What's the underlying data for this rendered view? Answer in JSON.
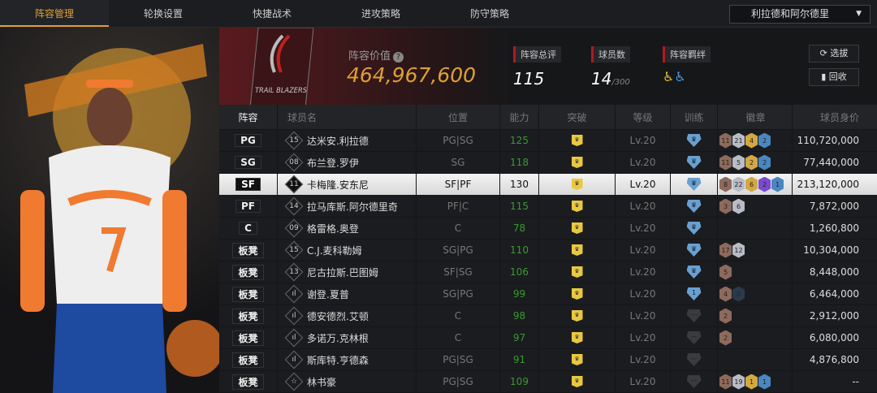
{
  "nav": {
    "tabs": [
      "阵容管理",
      "轮换设置",
      "快捷战术",
      "进攻策略",
      "防守策略"
    ],
    "active": 0,
    "lineup_select": "利拉德和阿尔德里"
  },
  "banner": {
    "team_logo_text": "TRAIL BLAZERS",
    "value_label": "阵容价值",
    "value": "464,967,600",
    "overall_label": "阵容总评",
    "overall": "115",
    "count_label": "球员数",
    "count": "14",
    "count_max": "/300",
    "bond_label": "阵容羁绊",
    "select_btn": "选拔",
    "recycle_btn": "回收"
  },
  "colors": {
    "accent": "#e0a030",
    "green": "#3a9a30",
    "bronze": "#8d6a5c",
    "silver": "#b8bcc6",
    "gold": "#d4a840",
    "blue": "#4a86c0",
    "purple": "#7a4ad0",
    "dark": "#2a3a4c"
  },
  "headers": [
    "阵容",
    "球员名",
    "位置",
    "能力",
    "突破",
    "等级",
    "训练",
    "徽章",
    "球员身价"
  ],
  "rows": [
    {
      "slot": "PG",
      "num": "15",
      "name": "达米安.利拉德",
      "pos": "PG|SG",
      "ovr": "125",
      "lv": "Lv.20",
      "train": "",
      "badges": [
        [
          "11",
          "bronze"
        ],
        [
          "21",
          "silver"
        ],
        [
          "4",
          "gold"
        ],
        [
          "2",
          "blue"
        ]
      ],
      "price": "110,720,000"
    },
    {
      "slot": "SG",
      "num": "08",
      "name": "布兰登.罗伊",
      "pos": "SG",
      "ovr": "118",
      "lv": "Lv.20",
      "train": "",
      "badges": [
        [
          "11",
          "bronze"
        ],
        [
          "5",
          "silver"
        ],
        [
          "2",
          "gold"
        ],
        [
          "2",
          "blue"
        ]
      ],
      "price": "77,440,000"
    },
    {
      "slot": "SF",
      "num": "11",
      "name": "卡梅隆.安东尼",
      "pos": "SF|PF",
      "ovr": "130",
      "lv": "Lv.20",
      "train": "",
      "badges": [
        [
          "8",
          "bronze"
        ],
        [
          "22",
          "silver"
        ],
        [
          "6",
          "gold"
        ],
        [
          "2",
          "purple"
        ],
        [
          "1",
          "blue"
        ]
      ],
      "price": "213,120,000",
      "selected": true
    },
    {
      "slot": "PF",
      "num": "14",
      "name": "拉马库斯.阿尔德里奇",
      "pos": "PF|C",
      "ovr": "115",
      "lv": "Lv.20",
      "train": "",
      "badges": [
        [
          "3",
          "bronze"
        ],
        [
          "6",
          "silver"
        ]
      ],
      "price": "7,872,000"
    },
    {
      "slot": "C",
      "num": "09",
      "name": "格雷格.奥登",
      "pos": "C",
      "ovr": "78",
      "lv": "Lv.20",
      "train": "",
      "badges": [],
      "price": "1,260,800"
    },
    {
      "slot": "板凳",
      "num": "15",
      "name": "C.J.麦科勒姆",
      "pos": "SG|PG",
      "ovr": "110",
      "lv": "Lv.20",
      "train": "",
      "badges": [
        [
          "17",
          "bronze"
        ],
        [
          "12",
          "silver"
        ]
      ],
      "price": "10,304,000"
    },
    {
      "slot": "板凳",
      "num": "13",
      "name": "尼古拉斯.巴图姆",
      "pos": "SF|SG",
      "ovr": "106",
      "lv": "Lv.20",
      "train": "",
      "badges": [
        [
          "5",
          "bronze"
        ]
      ],
      "price": "8,448,000"
    },
    {
      "slot": "板凳",
      "num": "signal",
      "name": "谢登.夏普",
      "pos": "SG|PG",
      "ovr": "99",
      "lv": "Lv.20",
      "train": "1",
      "badges": [
        [
          "4",
          "bronze"
        ],
        [
          "0",
          "dark"
        ]
      ],
      "price": "6,464,000"
    },
    {
      "slot": "板凳",
      "num": "signal",
      "name": "德安德烈.艾顿",
      "pos": "C",
      "ovr": "98",
      "lv": "Lv.20",
      "train": "none",
      "badges": [
        [
          "2",
          "bronze"
        ]
      ],
      "price": "2,912,000"
    },
    {
      "slot": "板凳",
      "num": "signal",
      "name": "多诺万.克林根",
      "pos": "C",
      "ovr": "97",
      "lv": "Lv.20",
      "train": "none",
      "badges": [
        [
          "2",
          "bronze"
        ]
      ],
      "price": "6,080,000"
    },
    {
      "slot": "板凳",
      "num": "signal",
      "name": "斯库特.亨德森",
      "pos": "PG|SG",
      "ovr": "91",
      "lv": "Lv.20",
      "train": "none",
      "badges": [],
      "price": "4,876,800"
    },
    {
      "slot": "板凳",
      "num": "star",
      "name": "林书豪",
      "pos": "PG|SG",
      "ovr": "109",
      "lv": "Lv.20",
      "train": "none",
      "badges": [
        [
          "11",
          "bronze"
        ],
        [
          "19",
          "silver"
        ],
        [
          "1",
          "gold"
        ],
        [
          "1",
          "blue"
        ]
      ],
      "price": "--"
    }
  ]
}
